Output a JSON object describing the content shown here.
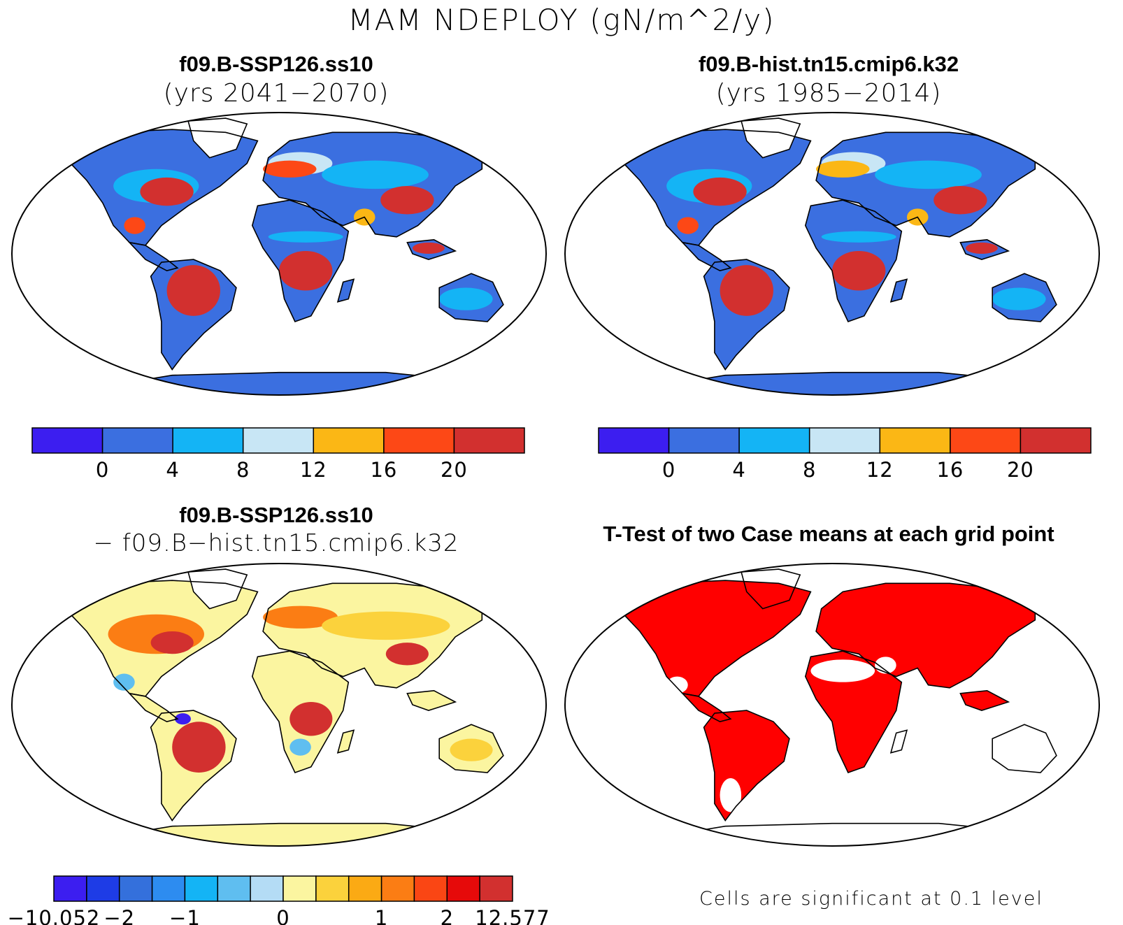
{
  "title": "MAM NDEPLOY (gN/m^2/y)",
  "panels": [
    {
      "title": "f09.B-SSP126.ss10",
      "subtitle": "(yrs 2041−2070)"
    },
    {
      "title": "f09.B-hist.tn15.cmip6.k32",
      "subtitle": "(yrs 1985−2014)"
    },
    {
      "title": "f09.B-SSP126.ss10",
      "subtitle": "− f09.B−hist.tn15.cmip6.k32"
    },
    {
      "title": "T-Test of two Case means at each grid point",
      "subtitle": ""
    }
  ],
  "colorbar_abs": {
    "colors": [
      "#3c1ef0",
      "#3b6fe0",
      "#14b4f5",
      "#c8e6f5",
      "#fbb715",
      "#fd4816",
      "#d2302f"
    ],
    "labels": [
      "0",
      "4",
      "8",
      "12",
      "16",
      "20"
    ]
  },
  "colorbar_diff": {
    "colors": [
      "#3c1ef0",
      "#1e3ce6",
      "#3470dc",
      "#2d8cf0",
      "#14b4f5",
      "#5fbef0",
      "#b4dcf5",
      "#fbf5a0",
      "#fbd23c",
      "#fbaa14",
      "#fb7d14",
      "#fa4614",
      "#e60a0a",
      "#d2302f"
    ],
    "labels": [
      "−10.052",
      "−2",
      "−1",
      "0",
      "1",
      "2",
      "12.577"
    ]
  },
  "ttest_note": "Cells are significant at 0.1 level",
  "map_colors": {
    "ocean": "#ffffff",
    "low": "#3b6fe0",
    "mid": "#14b4f5",
    "light": "#c8e6f5",
    "orange": "#fbb715",
    "red_orange": "#fd4816",
    "red": "#d2302f",
    "diff_yellow": "#fbf5a0",
    "diff_gold": "#fbd23c",
    "diff_orange": "#fb7d14",
    "diff_red": "#d2302f",
    "diff_blue": "#5fbef0",
    "diff_deep": "#3c1ef0",
    "sig": "#ff0000"
  }
}
